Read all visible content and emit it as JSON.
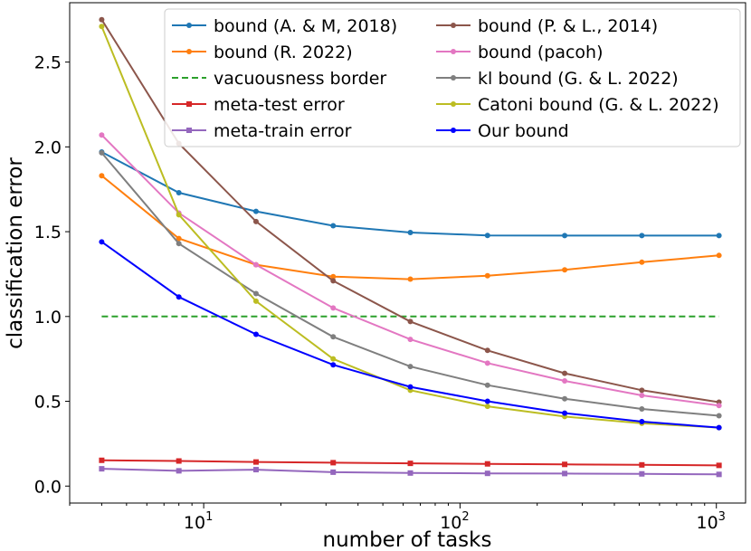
{
  "chart_data": {
    "type": "line",
    "x_scale": "log",
    "xlabel": "number of tasks",
    "ylabel": "classification error",
    "xlim": [
      3.0,
      1300
    ],
    "ylim": [
      -0.1,
      2.85
    ],
    "grid": false,
    "legend_placement": "top-right",
    "legend_columns": 2,
    "x": [
      4,
      8,
      16,
      32,
      64,
      128,
      256,
      512,
      1024
    ],
    "x_ticks": [
      {
        "value": 10,
        "base": "10",
        "exp": "1"
      },
      {
        "value": 100,
        "base": "10",
        "exp": "2"
      },
      {
        "value": 1000,
        "base": "10",
        "exp": "3"
      }
    ],
    "y_ticks": [
      {
        "value": 0.0,
        "label": "0.0"
      },
      {
        "value": 0.5,
        "label": "0.5"
      },
      {
        "value": 1.0,
        "label": "1.0"
      },
      {
        "value": 1.5,
        "label": "1.5"
      },
      {
        "value": 2.0,
        "label": "2.0"
      },
      {
        "value": 2.5,
        "label": "2.5"
      }
    ],
    "series": [
      {
        "name": "bound (A. & M, 2018)",
        "color": "#1f77b4",
        "marker": "circle",
        "dash": "solid",
        "values": [
          1.97,
          1.73,
          1.62,
          1.535,
          1.495,
          1.478,
          1.477,
          1.477,
          1.477
        ]
      },
      {
        "name": "bound (R. 2022)",
        "color": "#ff7f0e",
        "marker": "circle",
        "dash": "solid",
        "values": [
          1.83,
          1.46,
          1.305,
          1.235,
          1.22,
          1.24,
          1.275,
          1.32,
          1.36
        ]
      },
      {
        "name": "vacuousness border",
        "color": "#2ca02c",
        "marker": "none",
        "dash": "dashed",
        "values": [
          1.0,
          1.0,
          1.0,
          1.0,
          1.0,
          1.0,
          1.0,
          1.0,
          1.0
        ]
      },
      {
        "name": "meta-test error",
        "color": "#d62728",
        "marker": "square",
        "dash": "solid",
        "values": [
          0.152,
          0.148,
          0.142,
          0.138,
          0.134,
          0.131,
          0.128,
          0.125,
          0.122
        ]
      },
      {
        "name": "meta-train error",
        "color": "#9467bd",
        "marker": "square",
        "dash": "solid",
        "values": [
          0.102,
          0.09,
          0.097,
          0.082,
          0.077,
          0.075,
          0.074,
          0.072,
          0.069
        ]
      },
      {
        "name": "bound (P. & L., 2014)",
        "color": "#8c564b",
        "marker": "circle",
        "dash": "solid",
        "values": [
          2.75,
          2.02,
          1.56,
          1.21,
          0.97,
          0.8,
          0.665,
          0.565,
          0.495
        ]
      },
      {
        "name": "bound (pacoh)",
        "color": "#e377c2",
        "marker": "circle",
        "dash": "solid",
        "values": [
          2.07,
          1.61,
          1.305,
          1.05,
          0.865,
          0.725,
          0.62,
          0.535,
          0.475
        ]
      },
      {
        "name": "kl bound (G. & L. 2022)",
        "color": "#7f7f7f",
        "marker": "circle",
        "dash": "solid",
        "values": [
          1.965,
          1.43,
          1.135,
          0.88,
          0.705,
          0.595,
          0.515,
          0.455,
          0.415
        ]
      },
      {
        "name": "Catoni bound (G. & L. 2022)",
        "color": "#bcbd22",
        "marker": "circle",
        "dash": "solid",
        "values": [
          2.71,
          1.6,
          1.09,
          0.75,
          0.565,
          0.47,
          0.41,
          0.37,
          0.345
        ]
      },
      {
        "name": "Our bound",
        "color": "#0000ff",
        "marker": "circle",
        "dash": "solid",
        "values": [
          1.44,
          1.115,
          0.895,
          0.715,
          0.585,
          0.5,
          0.43,
          0.38,
          0.345
        ]
      }
    ]
  }
}
